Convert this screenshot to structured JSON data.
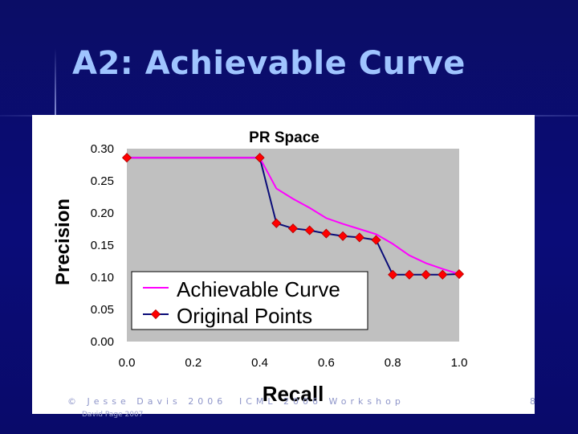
{
  "slide": {
    "title": "A2: Achievable Curve",
    "footer_left": "© Jesse Davis 2006",
    "footer_mid": "ICML 2006 Workshop",
    "footer_page": "8",
    "footer_author": "David Page 2007"
  },
  "colors": {
    "background": "#0a0c72",
    "title": "#9fc4ff",
    "plot_area": "#c0c0c0",
    "achievable_curve": "#ff00ff",
    "original_line": "#0a0c78",
    "original_marker": "#ff0000"
  },
  "chart_data": {
    "type": "line",
    "title": "PR Space",
    "xlabel": "Recall",
    "ylabel": "Precision",
    "xlim": [
      0.0,
      1.0
    ],
    "ylim": [
      0.0,
      0.3
    ],
    "xticks": [
      "0.0",
      "0.2",
      "0.4",
      "0.6",
      "0.8",
      "1.0"
    ],
    "yticks": [
      "0.00",
      "0.05",
      "0.10",
      "0.15",
      "0.20",
      "0.25",
      "0.30"
    ],
    "grid": false,
    "legend_position": "bottom-left",
    "series": [
      {
        "name": "Achievable Curve",
        "x": [
          0.0,
          0.1,
          0.2,
          0.3,
          0.4,
          0.45,
          0.5,
          0.55,
          0.6,
          0.65,
          0.7,
          0.75,
          0.8,
          0.85,
          0.9,
          0.95,
          1.0
        ],
        "y": [
          0.286,
          0.286,
          0.286,
          0.286,
          0.286,
          0.238,
          0.222,
          0.208,
          0.192,
          0.183,
          0.175,
          0.167,
          0.152,
          0.134,
          0.122,
          0.113,
          0.105
        ]
      },
      {
        "name": "Original Points",
        "x": [
          0.0,
          0.4,
          0.45,
          0.5,
          0.55,
          0.6,
          0.65,
          0.7,
          0.75,
          0.8,
          0.85,
          0.9,
          0.95,
          1.0
        ],
        "y": [
          0.286,
          0.286,
          0.184,
          0.176,
          0.173,
          0.168,
          0.164,
          0.162,
          0.158,
          0.104,
          0.104,
          0.104,
          0.104,
          0.105
        ]
      }
    ]
  }
}
